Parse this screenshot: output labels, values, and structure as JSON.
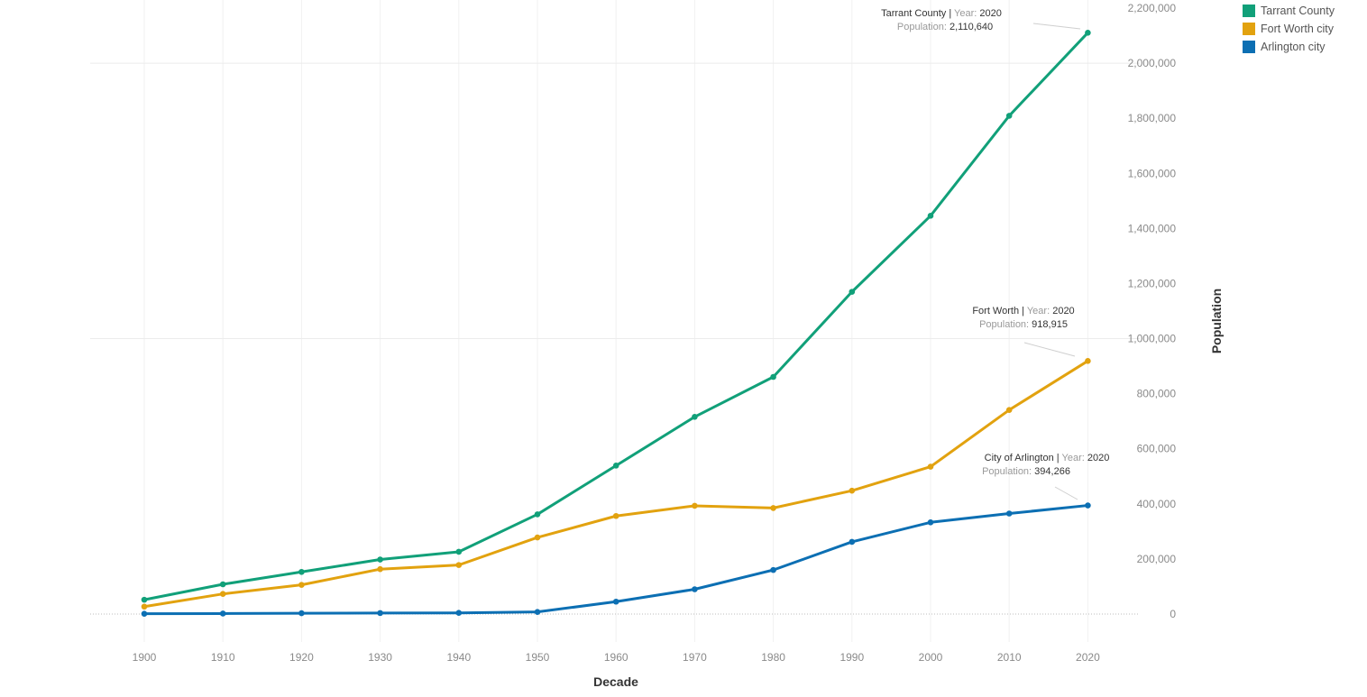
{
  "chart_data": {
    "type": "line",
    "xlabel": "Decade",
    "ylabel": "Population",
    "x": [
      1900,
      1910,
      1920,
      1930,
      1940,
      1950,
      1960,
      1970,
      1980,
      1990,
      2000,
      2010,
      2020
    ],
    "ylim": [
      0,
      2200000
    ],
    "yticks": [
      0,
      200000,
      400000,
      600000,
      800000,
      1000000,
      1200000,
      1400000,
      1600000,
      1800000,
      2000000,
      2200000
    ],
    "ytick_labels": [
      "0",
      "200,000",
      "400,000",
      "600,000",
      "800,000",
      "1,000,000",
      "1,200,000",
      "1,400,000",
      "1,600,000",
      "1,800,000",
      "2,000,000",
      "2,200,000"
    ],
    "xtick_labels": [
      "1900",
      "1910",
      "1920",
      "1930",
      "1940",
      "1950",
      "1960",
      "1970",
      "1980",
      "1990",
      "2000",
      "2010",
      "2020"
    ],
    "grid": true,
    "legend_position": "top-right",
    "series": [
      {
        "name": "Tarrant County",
        "color": "#11a079",
        "values": [
          52000,
          108000,
          153000,
          198000,
          226000,
          362000,
          539000,
          716000,
          861000,
          1170000,
          1446000,
          1809000,
          2110640
        ]
      },
      {
        "name": "Fort Worth city",
        "color": "#e2a20f",
        "values": [
          27000,
          73000,
          106000,
          163000,
          178000,
          278000,
          356000,
          393000,
          385000,
          448000,
          535000,
          741000,
          918915
        ]
      },
      {
        "name": "Arlington city",
        "color": "#0c6fb3",
        "values": [
          1100,
          1800,
          3000,
          3700,
          4200,
          7700,
          45000,
          90000,
          160000,
          262000,
          333000,
          365000,
          394266
        ]
      }
    ],
    "annotations": [
      {
        "series": 0,
        "name": "Tarrant County",
        "sep": " | ",
        "year_label": "Year:",
        "year": "2020",
        "pop_label": "Population:",
        "pop": "2,110,640"
      },
      {
        "series": 1,
        "name": "Fort Worth",
        "sep": " | ",
        "year_label": "Year:",
        "year": "2020",
        "pop_label": "Population:",
        "pop": "918,915"
      },
      {
        "series": 2,
        "name": "City of Arlington",
        "sep": " | ",
        "year_label": "Year:",
        "year": "2020",
        "pop_label": "Population:",
        "pop": "394,266"
      }
    ]
  }
}
